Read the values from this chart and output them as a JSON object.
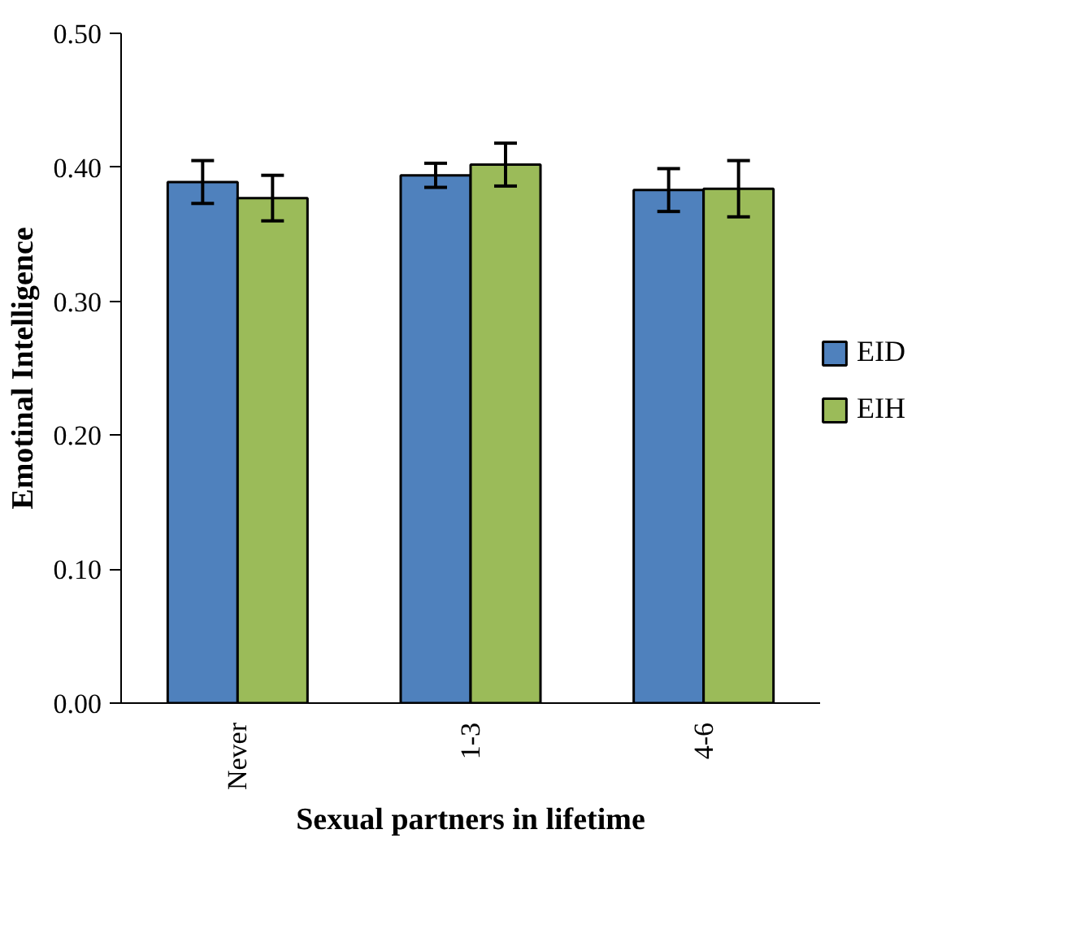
{
  "chart_data": {
    "type": "bar",
    "xlabel": "Sexual partners in lifetime",
    "ylabel": "Emotinal Intelligence",
    "categories": [
      "Never",
      "1-3",
      "4-6"
    ],
    "series": [
      {
        "name": "EID",
        "color": "#4f81bd",
        "values": [
          0.389,
          0.394,
          0.383
        ],
        "errors": [
          0.016,
          0.009,
          0.016
        ]
      },
      {
        "name": "EIH",
        "color": "#9bbb59",
        "values": [
          0.377,
          0.402,
          0.384
        ],
        "errors": [
          0.017,
          0.016,
          0.021
        ]
      }
    ],
    "ylim": [
      0,
      0.5
    ],
    "yticks": [
      {
        "value": 0,
        "label": "0.00"
      },
      {
        "value": 0.1,
        "label": "0.10"
      },
      {
        "value": 0.2,
        "label": "0.20"
      },
      {
        "value": 0.3,
        "label": "0.30"
      },
      {
        "value": 0.4,
        "label": "0.40"
      },
      {
        "value": 0.5,
        "label": "0.50"
      }
    ],
    "grid": false,
    "legend": "right"
  }
}
